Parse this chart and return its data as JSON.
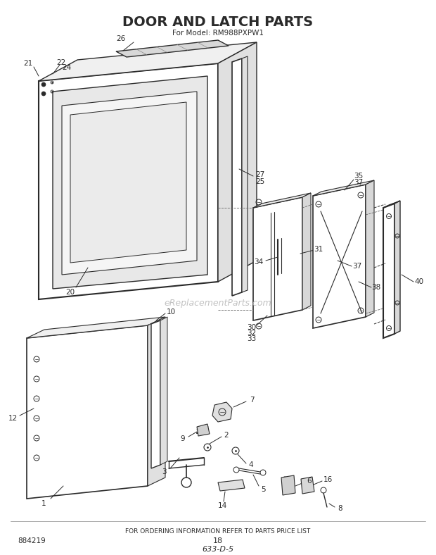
{
  "title": "DOOR AND LATCH PARTS",
  "subtitle": "For Model: RM988PXPW1",
  "footer_text": "FOR ORDERING INFORMATION REFER TO PARTS PRICE LIST",
  "page_number": "18",
  "diagram_code": "633-D-5",
  "part_number": "884219",
  "watermark": "eReplacementParts.com",
  "bg_color": "#ffffff",
  "line_color": "#2a2a2a",
  "gray_light": "#cccccc",
  "gray_mid": "#999999"
}
